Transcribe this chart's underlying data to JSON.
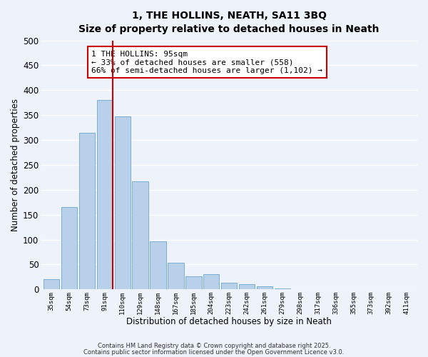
{
  "title": "1, THE HOLLINS, NEATH, SA11 3BQ",
  "subtitle": "Size of property relative to detached houses in Neath",
  "xlabel": "Distribution of detached houses by size in Neath",
  "ylabel": "Number of detached properties",
  "bar_labels": [
    "35sqm",
    "54sqm",
    "73sqm",
    "91sqm",
    "110sqm",
    "129sqm",
    "148sqm",
    "167sqm",
    "185sqm",
    "204sqm",
    "223sqm",
    "242sqm",
    "261sqm",
    "279sqm",
    "298sqm",
    "317sqm",
    "336sqm",
    "355sqm",
    "373sqm",
    "392sqm",
    "411sqm"
  ],
  "bar_values": [
    20,
    165,
    315,
    380,
    348,
    217,
    97,
    53,
    26,
    30,
    14,
    10,
    6,
    2,
    0,
    0,
    0,
    0,
    0,
    0,
    0
  ],
  "bar_color": "#b8d0ea",
  "bar_edge_color": "#7aaed4",
  "background_color": "#eef2fb",
  "grid_color": "#ffffff",
  "vline_x_idx": 3,
  "vline_color": "#cc0000",
  "annotation_line1": "1 THE HOLLINS: 95sqm",
  "annotation_line2": "← 33% of detached houses are smaller (558)",
  "annotation_line3": "66% of semi-detached houses are larger (1,102) →",
  "annotation_box_color": "#ffffff",
  "annotation_box_edge": "#cc0000",
  "ylim": [
    0,
    500
  ],
  "yticks": [
    0,
    50,
    100,
    150,
    200,
    250,
    300,
    350,
    400,
    450,
    500
  ],
  "footnote1": "Contains HM Land Registry data © Crown copyright and database right 2025.",
  "footnote2": "Contains public sector information licensed under the Open Government Licence v3.0."
}
